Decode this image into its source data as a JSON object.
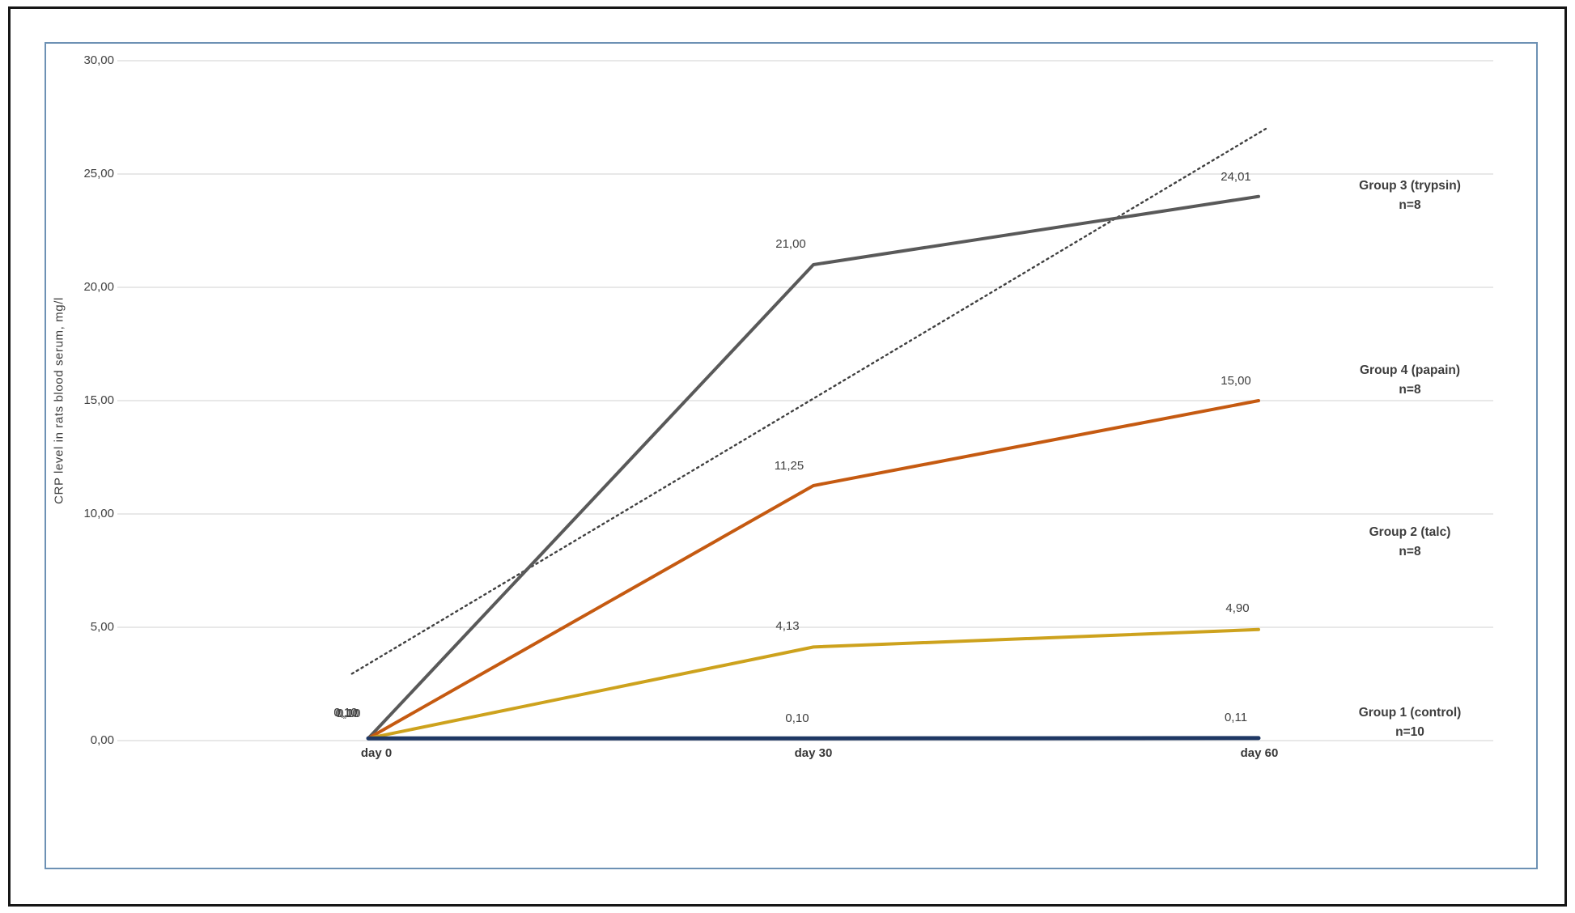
{
  "chart_data": {
    "type": "line",
    "title": "",
    "xlabel": "",
    "ylabel": "CRP level in rats blood serum, mg/l",
    "x_tick_labels": [
      "day 0",
      "day 30",
      "day 60"
    ],
    "x_values_days": [
      0,
      30,
      60
    ],
    "y_axis": {
      "min": 0,
      "max": 30,
      "step": 5,
      "tick_labels": [
        "30,00",
        "25,00",
        "20,00",
        "15,00",
        "10,00",
        "5,00",
        "0,00"
      ]
    },
    "grid": "horizontal",
    "legend_position": "right-annotations",
    "series": [
      {
        "id": "group3",
        "name": "Group 3 (trypsin)",
        "n": "n=8",
        "color": "#595959",
        "values": [
          0.1,
          21.0,
          24.01
        ],
        "point_labels": [
          "0,10",
          "21,00",
          "24,01"
        ]
      },
      {
        "id": "group4",
        "name": "Group 4 (papain)",
        "n": "n=8",
        "color": "#C55A11",
        "values": [
          0.1,
          11.25,
          15.0
        ],
        "point_labels": [
          "0,10",
          "11,25",
          "15,00"
        ]
      },
      {
        "id": "group2",
        "name": "Group 2 (talc)",
        "n": "n=8",
        "color": "#CDA21D",
        "values": [
          0.1,
          4.13,
          4.9
        ],
        "point_labels": [
          "0,10",
          "4,13",
          "4,90"
        ]
      },
      {
        "id": "group1",
        "name": "Group 1 (control)",
        "n": "n=10",
        "color": "#1F3864",
        "values": [
          0.1,
          0.1,
          0.11
        ],
        "point_labels": [
          "0,10",
          "0,10",
          "0,11"
        ]
      }
    ],
    "trendline": {
      "style": "dotted",
      "color": "#404040",
      "from": {
        "day": -1.1,
        "value": 2.95
      },
      "to": {
        "day": 60.5,
        "value": 27.0
      }
    }
  }
}
